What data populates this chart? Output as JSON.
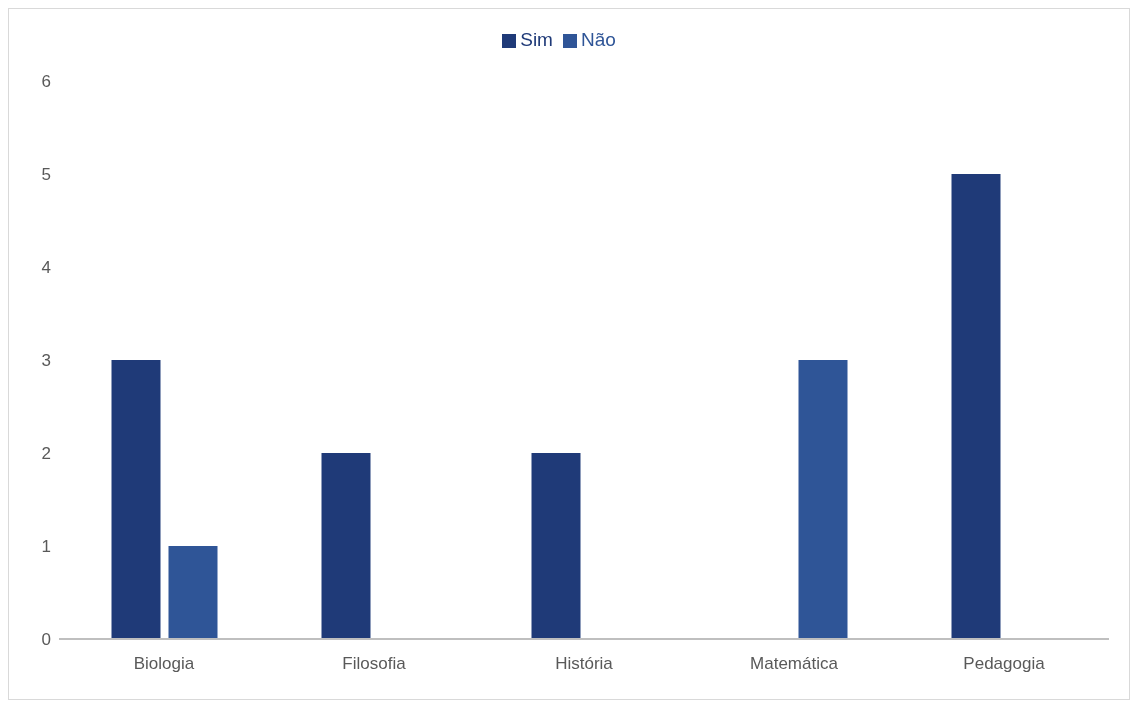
{
  "chart_data": {
    "type": "bar",
    "categories": [
      "Biologia",
      "Filosofia",
      "História",
      "Matemática",
      "Pedagogia"
    ],
    "series": [
      {
        "name": "Sim",
        "color": "#1f3a78",
        "values": [
          3,
          2,
          2,
          0,
          5
        ]
      },
      {
        "name": "Não",
        "color": "#2f5597",
        "values": [
          1,
          0,
          0,
          3,
          0
        ]
      }
    ],
    "ylim": [
      0,
      6
    ],
    "yticks": [
      0,
      1,
      2,
      3,
      4,
      5,
      6
    ],
    "grid": false,
    "legend": "top"
  }
}
